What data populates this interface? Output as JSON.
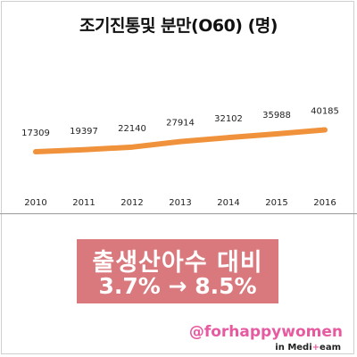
{
  "chart_data": {
    "type": "line",
    "title": "조기진통및 분만(O60) (명)",
    "categories": [
      "2010",
      "2011",
      "2012",
      "2013",
      "2014",
      "2015",
      "2016"
    ],
    "values": [
      17309,
      19397,
      22140,
      27914,
      32102,
      35988,
      40185
    ],
    "ylim": [
      0,
      45000
    ],
    "grid": false,
    "line_color": "#f0923b"
  },
  "banner": {
    "line1": "출생산아수 대비",
    "line2_from": "3.7%",
    "arrow": "→",
    "line2_to": "8.5%",
    "bg_color": "#d9797e"
  },
  "brand": {
    "handle": "@forhappywomen",
    "sub_prefix": "in Medi",
    "sub_plus": "+",
    "sub_suffix": "eam"
  }
}
